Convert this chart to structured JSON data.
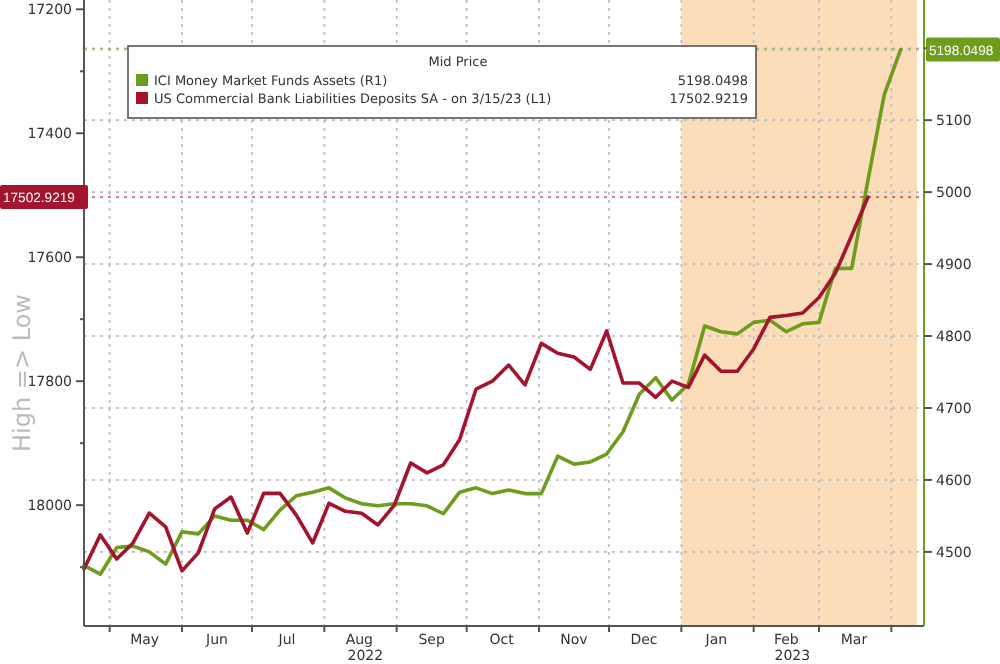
{
  "chart_data": {
    "type": "line",
    "ylabel": "High => Low",
    "legend_title": "Mid Price",
    "legend": "top left",
    "grid": true,
    "annotations": [
      "5198.0498",
      "17502.9219"
    ],
    "x": [
      "2022-04-20",
      "2022-04-27",
      "2022-05-04",
      "2022-05-11",
      "2022-05-18",
      "2022-05-25",
      "2022-06-01",
      "2022-06-08",
      "2022-06-15",
      "2022-06-22",
      "2022-06-29",
      "2022-07-06",
      "2022-07-13",
      "2022-07-20",
      "2022-07-27",
      "2022-08-03",
      "2022-08-10",
      "2022-08-17",
      "2022-08-24",
      "2022-08-31",
      "2022-09-07",
      "2022-09-14",
      "2022-09-21",
      "2022-09-28",
      "2022-10-05",
      "2022-10-12",
      "2022-10-19",
      "2022-10-26",
      "2022-11-02",
      "2022-11-09",
      "2022-11-16",
      "2022-11-23",
      "2022-11-30",
      "2022-12-07",
      "2022-12-14",
      "2022-12-21",
      "2022-12-28",
      "2023-01-04",
      "2023-01-11",
      "2023-01-18",
      "2023-01-25",
      "2023-02-01",
      "2023-02-08",
      "2023-02-15",
      "2023-02-22",
      "2023-03-01",
      "2023-03-08",
      "2023-03-15",
      "2023-03-22",
      "2023-03-29",
      "2023-04-05"
    ],
    "series": [
      {
        "name": "ICI Money Market Funds Assets  (R1)",
        "color": "#6e9c1c",
        "axis": "y2",
        "values": [
          4481,
          4469,
          4506,
          4508,
          4500,
          4483,
          4528,
          4525,
          4550,
          4544,
          4544,
          4531,
          4558,
          4578,
          4583,
          4589,
          4575,
          4567,
          4564,
          4567,
          4567,
          4564,
          4553,
          4583,
          4589,
          4581,
          4586,
          4581,
          4581,
          4633,
          4622,
          4625,
          4636,
          4667,
          4719,
          4742,
          4711,
          4733,
          4814,
          4806,
          4803,
          4819,
          4822,
          4806,
          4817,
          4819,
          4894,
          4894,
          5017,
          5136,
          5198.0498
        ]
      },
      {
        "name": "US Commercial Bank Liabilities Deposits SA -  on 3/15/23  (L1)",
        "color": "#a3142e",
        "values": [
          18103,
          18048,
          18087,
          18061,
          18013,
          18035,
          18106,
          18077,
          18006,
          17987,
          18045,
          17981,
          17981,
          18016,
          18061,
          17997,
          18010,
          18013,
          18032,
          18000,
          17932,
          17948,
          17935,
          17894,
          17813,
          17800,
          17774,
          17806,
          17739,
          17755,
          17761,
          17781,
          17719,
          17803,
          17803,
          17826,
          17800,
          17810,
          17758,
          17784,
          17784,
          17748,
          17697,
          17694,
          17690,
          17665,
          17626,
          17565,
          17502.9219,
          null,
          null
        ]
      }
    ],
    "xlim": [
      "2022-04-20",
      "2023-04-15"
    ],
    "xticks": [
      {
        "value": "2022-05-01",
        "label": null
      },
      {
        "value": "2022-05-16",
        "label": "May"
      },
      {
        "value": "2022-06-01",
        "label": null
      },
      {
        "value": "2022-06-16",
        "label": "Jun"
      },
      {
        "value": "2022-07-01",
        "label": null
      },
      {
        "value": "2022-07-16",
        "label": "Jul"
      },
      {
        "value": "2022-08-01",
        "label": null
      },
      {
        "value": "2022-08-16",
        "label": "Aug\n2022"
      },
      {
        "value": "2022-09-01",
        "label": null
      },
      {
        "value": "2022-09-16",
        "label": "Sep"
      },
      {
        "value": "2022-10-01",
        "label": null
      },
      {
        "value": "2022-10-16",
        "label": "Oct"
      },
      {
        "value": "2022-11-01",
        "label": null
      },
      {
        "value": "2022-11-16",
        "label": "Nov"
      },
      {
        "value": "2022-12-01",
        "label": null
      },
      {
        "value": "2022-12-16",
        "label": "Dec"
      },
      {
        "value": "2023-01-01",
        "label": null
      },
      {
        "value": "2023-01-16",
        "label": "Jan"
      },
      {
        "value": "2023-02-01",
        "label": null
      },
      {
        "value": "2023-02-15",
        "label": "Feb\n2023"
      },
      {
        "value": "2023-03-01",
        "label": null
      },
      {
        "value": "2023-03-16",
        "label": "Mar"
      },
      {
        "value": "2023-04-01",
        "label": null
      }
    ],
    "ylim": [
      18195,
      17185
    ],
    "yticks": [
      17200,
      {
        "value": 17300,
        "label": null
      },
      17400,
      {
        "value": 17500,
        "label": null
      },
      17600,
      {
        "value": 17700,
        "label": null
      },
      17800,
      {
        "value": 17900,
        "label": null
      },
      18000,
      {
        "value": 18100,
        "label": null
      }
    ],
    "y2lim": [
      4397,
      5267
    ],
    "y2ticks": [
      4500,
      4600,
      4700,
      4800,
      4900,
      5000,
      5100,
      {
        "value": 5200,
        "label": null
      }
    ],
    "ref_lines": [
      {
        "axis": "y2",
        "value": 5198.0498,
        "label": "5198.0498",
        "color": "#6e9c1c",
        "line_style": "dotted"
      },
      {
        "axis": "y",
        "value": 17502.9219,
        "label": "17502.9219",
        "color": "#a3142e",
        "line_style": "dotted"
      }
    ],
    "bands": [
      {
        "axis": "x",
        "from": "2023-01-01",
        "to": "2023-04-12",
        "color": "#fad7ae"
      }
    ]
  }
}
